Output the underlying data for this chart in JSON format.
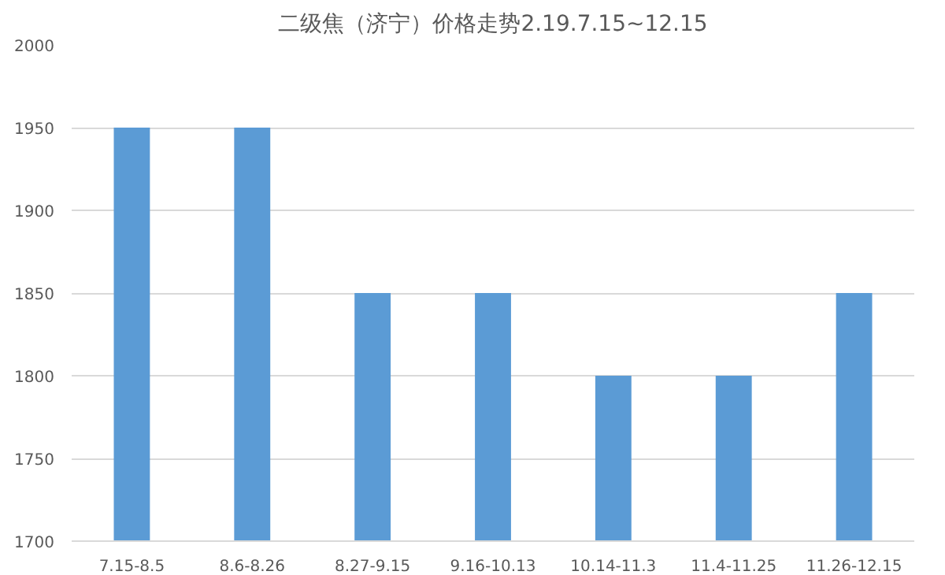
{
  "chart_data": {
    "type": "bar",
    "title": "二级焦（济宁）价格走势2.19.7.15~12.15",
    "categories": [
      "7.15-8.5",
      "8.6-8.26",
      "8.27-9.15",
      "9.16-10.13",
      "10.14-11.3",
      "11.4-11.25",
      "11.26-12.15"
    ],
    "series": [
      {
        "color": "#5b9bd5",
        "values": [
          1950,
          1950,
          1850,
          1850,
          1800,
          1800,
          1850
        ]
      }
    ],
    "ylim": [
      1700,
      2000
    ],
    "yticks": [
      1700,
      1750,
      1800,
      1850,
      1900,
      1950,
      2000
    ],
    "grid": "y"
  }
}
